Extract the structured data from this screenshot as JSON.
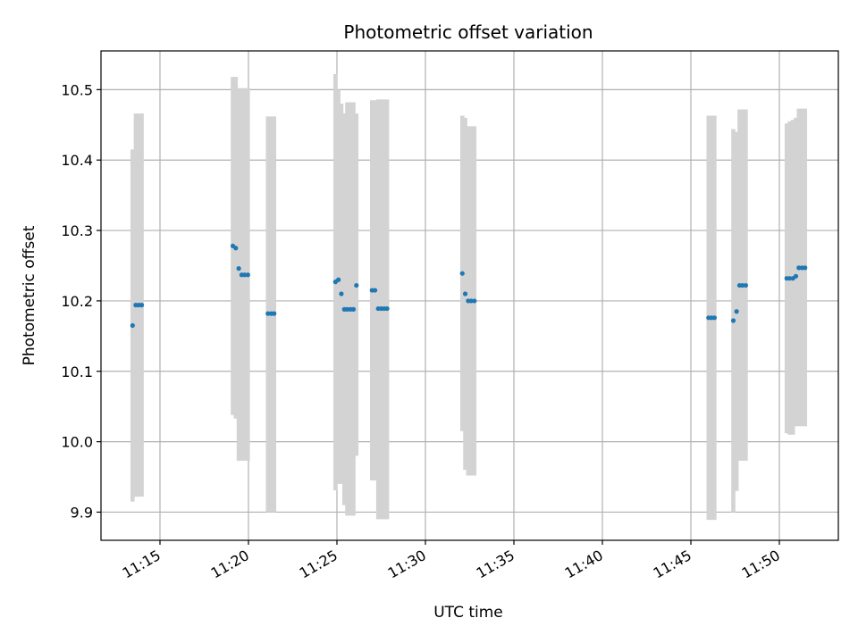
{
  "chart_data": {
    "type": "scatter",
    "title": "Photometric offset variation",
    "xlabel": "UTC time",
    "ylabel": "Photometric offset",
    "x_ticks": [
      "11:15",
      "11:20",
      "11:25",
      "11:30",
      "11:35",
      "11:40",
      "11:45",
      "11:50"
    ],
    "y_ticks": [
      "9.9",
      "10.0",
      "10.1",
      "10.2",
      "10.3",
      "10.4",
      "10.5"
    ],
    "xlim": [
      "11:11:40",
      "11:53:20"
    ],
    "ylim": [
      9.86,
      10.555
    ],
    "grid": true,
    "marker_color": "#1f77b4",
    "errorbar_color": "#d3d3d3",
    "series": [
      {
        "x": [
          "11:13:27",
          "11:13:38",
          "11:13:48",
          "11:13:58",
          "11:19:07",
          "11:19:17",
          "11:19:27",
          "11:19:37",
          "11:19:47",
          "11:19:58",
          "11:21:06",
          "11:21:17",
          "11:21:27",
          "11:24:55",
          "11:25:05",
          "11:25:15",
          "11:25:25",
          "11:25:35",
          "11:25:46",
          "11:25:56",
          "11:26:06",
          "11:26:59",
          "11:27:09",
          "11:27:20",
          "11:27:30",
          "11:27:40",
          "11:27:50",
          "11:32:05",
          "11:32:15",
          "11:32:25",
          "11:32:35",
          "11:32:46",
          "11:46:00",
          "11:46:10",
          "11:46:20",
          "11:47:24",
          "11:47:35",
          "11:47:45",
          "11:47:55",
          "11:48:06",
          "11:50:25",
          "11:50:35",
          "11:50:46",
          "11:50:56",
          "11:51:06",
          "11:51:17",
          "11:51:27"
        ],
        "y": [
          10.165,
          10.194,
          10.194,
          10.194,
          10.278,
          10.275,
          10.246,
          10.237,
          10.237,
          10.237,
          10.182,
          10.182,
          10.182,
          10.227,
          10.23,
          10.21,
          10.188,
          10.188,
          10.188,
          10.188,
          10.222,
          10.215,
          10.215,
          10.189,
          10.189,
          10.189,
          10.189,
          10.239,
          10.21,
          10.2,
          10.2,
          10.2,
          10.176,
          10.176,
          10.176,
          10.172,
          10.185,
          10.222,
          10.222,
          10.222,
          10.232,
          10.232,
          10.232,
          10.235,
          10.247,
          10.247,
          10.247
        ],
        "y_low": [
          9.915,
          9.922,
          9.922,
          9.922,
          10.038,
          10.033,
          9.973,
          9.973,
          9.973,
          9.973,
          9.9,
          9.9,
          9.9,
          9.931,
          9.94,
          9.94,
          9.91,
          9.895,
          9.895,
          9.895,
          9.98,
          9.945,
          9.945,
          9.89,
          9.89,
          9.89,
          9.89,
          10.015,
          9.96,
          9.952,
          9.952,
          9.952,
          9.889,
          9.889,
          9.889,
          9.9,
          9.93,
          9.973,
          9.973,
          9.973,
          10.012,
          10.01,
          10.01,
          10.022,
          10.022,
          10.022,
          10.022
        ],
        "y_high": [
          10.415,
          10.466,
          10.466,
          10.466,
          10.518,
          10.518,
          10.502,
          10.502,
          10.502,
          10.502,
          10.462,
          10.462,
          10.462,
          10.522,
          10.5,
          10.48,
          10.466,
          10.482,
          10.482,
          10.482,
          10.466,
          10.485,
          10.485,
          10.486,
          10.486,
          10.486,
          10.486,
          10.463,
          10.46,
          10.448,
          10.448,
          10.448,
          10.463,
          10.463,
          10.463,
          10.444,
          10.44,
          10.472,
          10.472,
          10.472,
          10.452,
          10.455,
          10.457,
          10.46,
          10.473,
          10.473,
          10.473
        ]
      }
    ]
  }
}
